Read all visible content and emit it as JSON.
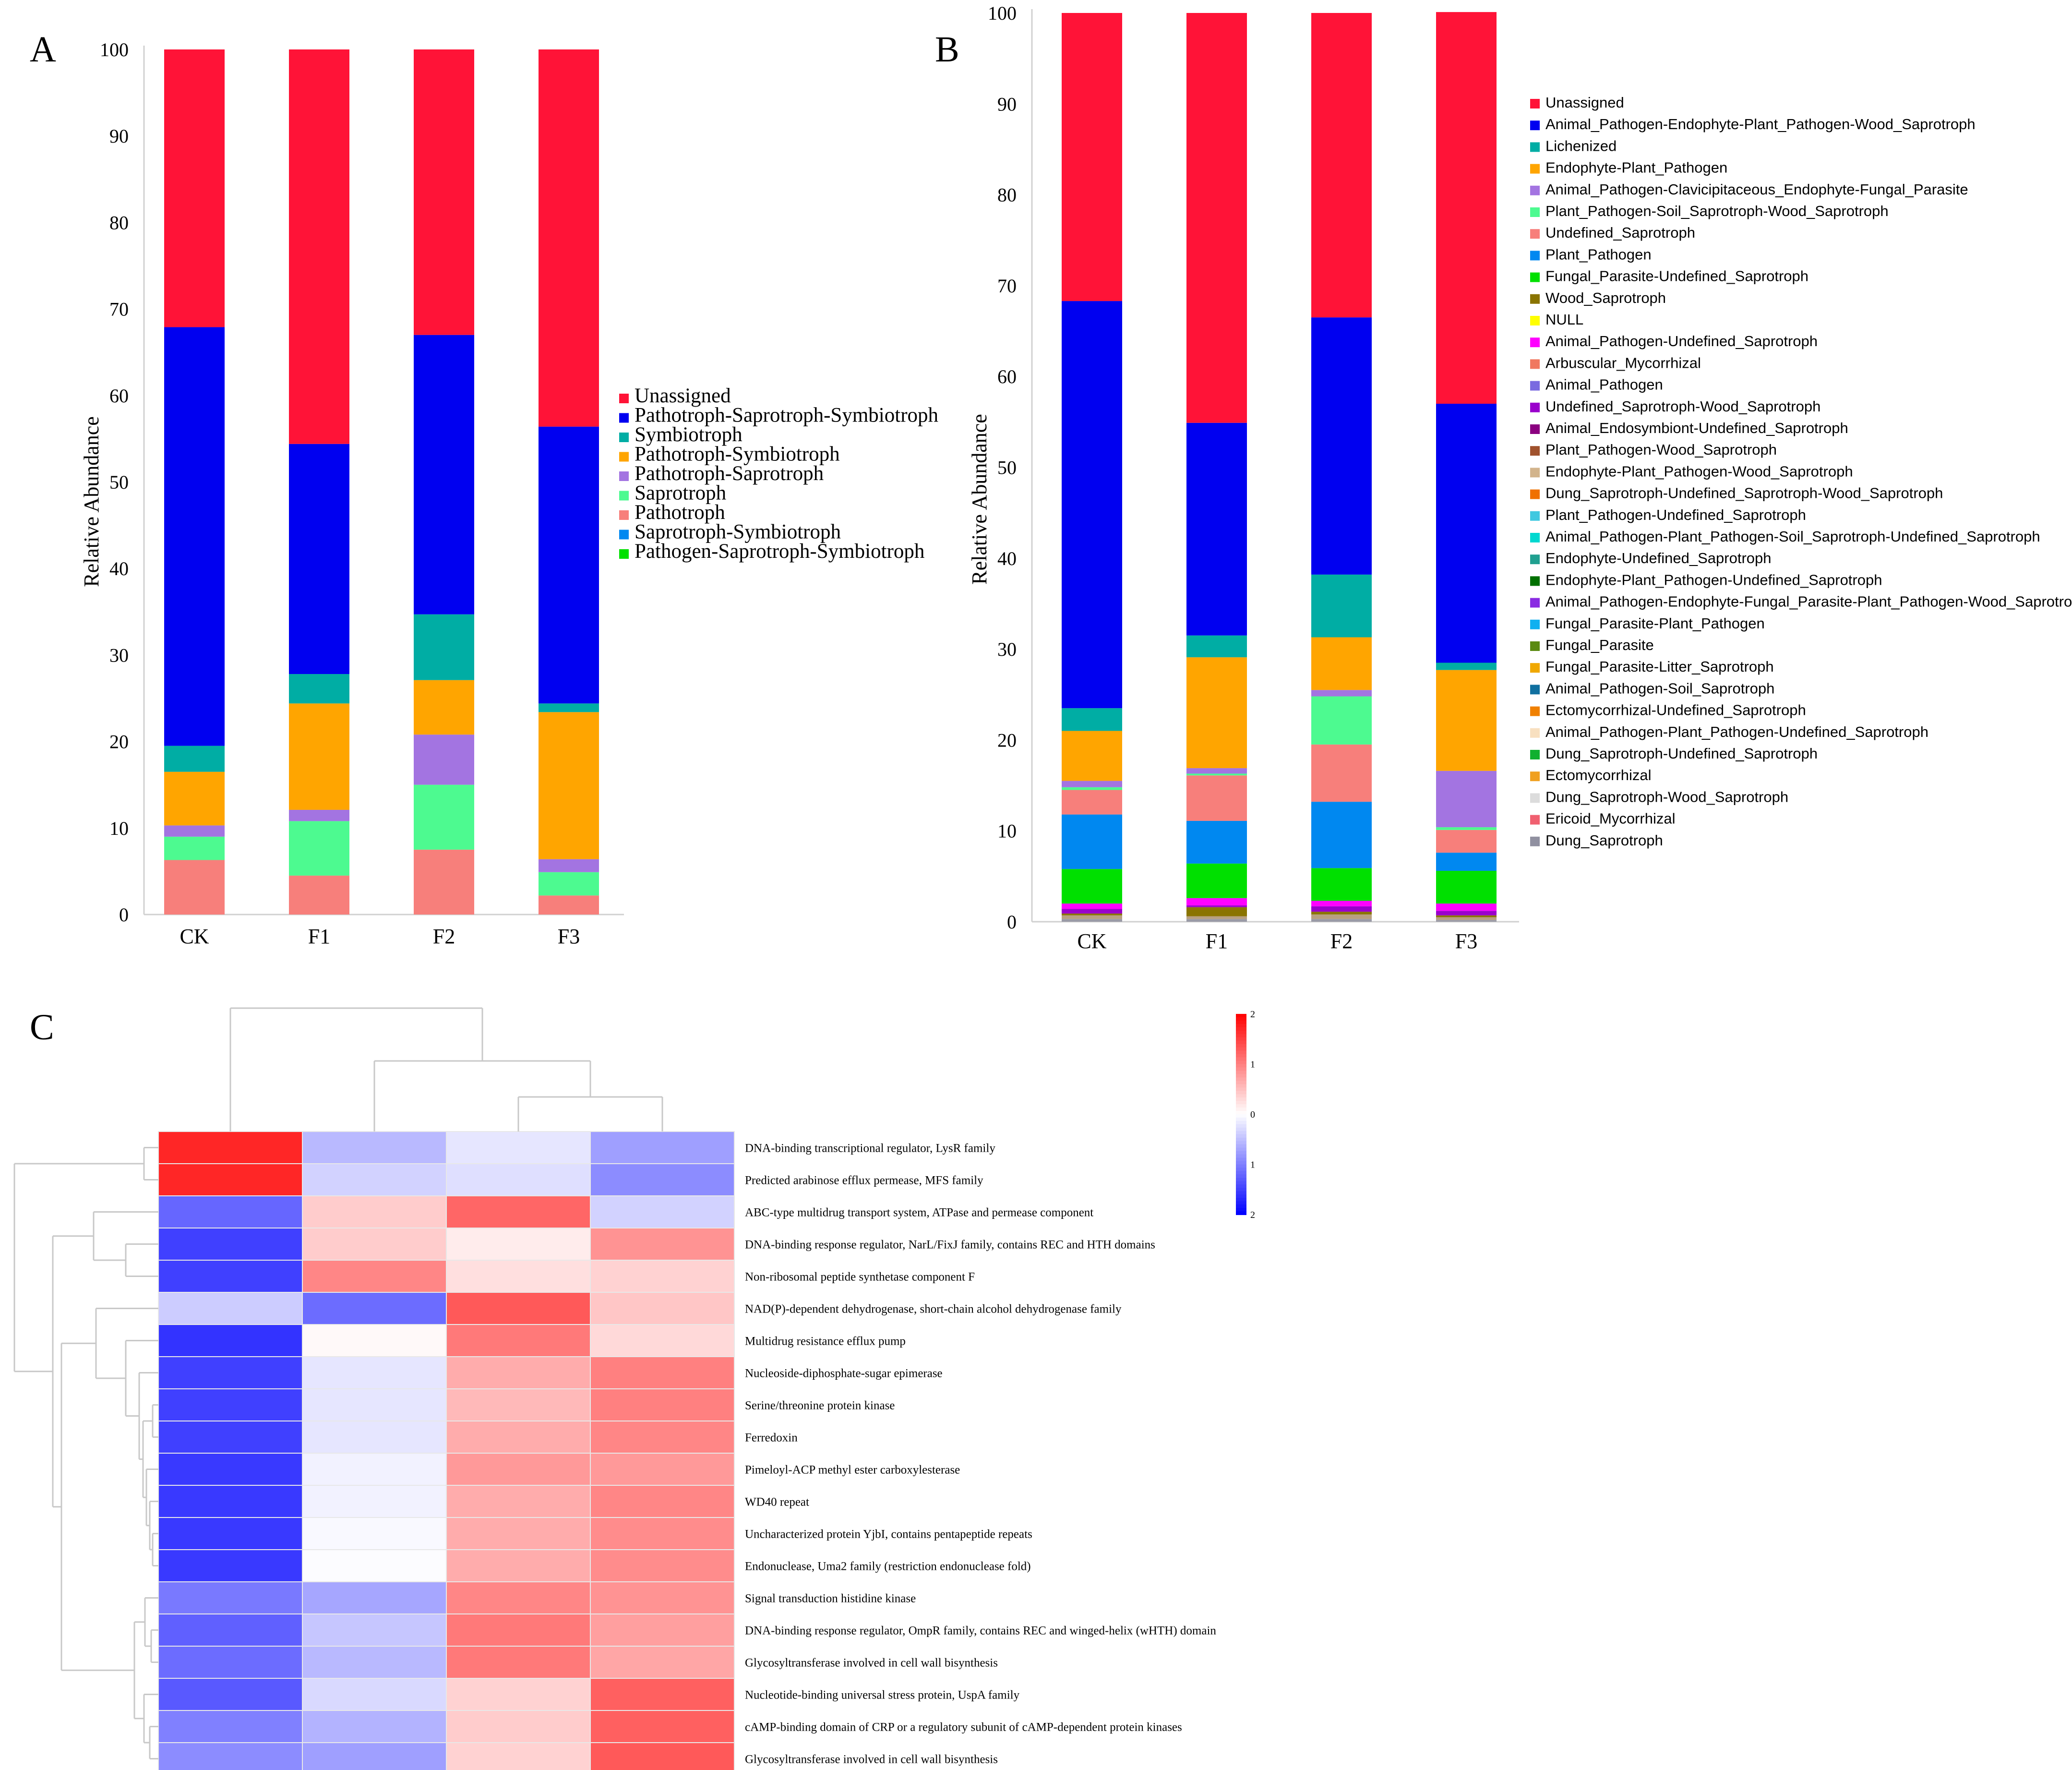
{
  "panel_labels": {
    "a": "A",
    "b": "B",
    "c": "C"
  },
  "chart_data": [
    {
      "type": "bar",
      "stacked": true,
      "panel": "A",
      "ylabel": "Relative Abundance",
      "ylim": [
        0,
        100
      ],
      "yticks": [
        "0",
        "10",
        "20",
        "30",
        "40",
        "50",
        "60",
        "70",
        "80",
        "90",
        "100"
      ],
      "categories": [
        "CK",
        "F1",
        "F2",
        "F3"
      ],
      "legend_placement": "right",
      "series": [
        {
          "name": "Pathotroph",
          "color": "#f77f7b",
          "values": [
            6.3,
            4.5,
            7.5,
            2.2
          ]
        },
        {
          "name": "Saprotroph",
          "color": "#4dfa90",
          "values": [
            2.7,
            6.3,
            7.5,
            2.7
          ]
        },
        {
          "name": "Pathotroph-Saprotroph",
          "color": "#a374e1",
          "values": [
            1.3,
            1.3,
            5.8,
            1.5
          ]
        },
        {
          "name": "Pathotroph-Symbiotroph",
          "color": "#ffa500",
          "values": [
            6.2,
            12.3,
            6.3,
            17.0
          ]
        },
        {
          "name": "Symbiotroph",
          "color": "#00ada4",
          "values": [
            3.0,
            3.4,
            7.6,
            1.0
          ]
        },
        {
          "name": "Pathotroph-Saprotroph-Symbiotroph",
          "color": "#0000f0",
          "values": [
            48.4,
            26.6,
            32.3,
            32.0
          ]
        },
        {
          "name": "Unassigned",
          "color": "#ff1337",
          "values": [
            32.1,
            45.6,
            33.0,
            43.6
          ]
        }
      ],
      "legend": [
        "Unassigned",
        "Pathotroph-Saprotroph-Symbiotroph",
        "Symbiotroph",
        "Pathotroph-Symbiotroph",
        "Pathotroph-Saprotroph",
        "Saprotroph",
        "Pathotroph",
        "Saprotroph-Symbiotroph",
        "Pathogen-Saprotroph-Symbiotroph"
      ],
      "legend_colors": [
        "#ff1337",
        "#0000f0",
        "#00ada4",
        "#ffa500",
        "#a374e1",
        "#4dfa90",
        "#f77f7b",
        "#0088f0",
        "#00e000"
      ]
    },
    {
      "type": "bar",
      "stacked": true,
      "panel": "B",
      "ylabel": "Relative Abundance",
      "ylim": [
        0,
        100
      ],
      "yticks": [
        "0",
        "10",
        "20",
        "30",
        "40",
        "50",
        "60",
        "70",
        "80",
        "90",
        "100"
      ],
      "categories": [
        "CK",
        "F1",
        "F2",
        "F3"
      ],
      "legend_placement": "right",
      "series": [
        {
          "name": "Dung_Saprotroph_etc",
          "color": "#9a9aa6",
          "values": [
            0.3,
            0.3,
            0.3,
            0.2
          ]
        },
        {
          "name": "Animal_Pathogen_etc",
          "color": "#b8a080",
          "values": [
            0.4,
            0.3,
            0.5,
            0.3
          ]
        },
        {
          "name": "Wood_Saprotroph",
          "color": "#8a7400",
          "values": [
            0.2,
            1.0,
            0.3,
            0.2
          ]
        },
        {
          "name": "Undefined_Saprotroph-Wood_Saprotroph",
          "color": "#9a00cc",
          "values": [
            0.5,
            0.2,
            0.6,
            0.5
          ]
        },
        {
          "name": "Animal_Pathogen-Undefined_Saprotroph",
          "color": "#ff00ff",
          "values": [
            0.6,
            0.8,
            0.6,
            0.8
          ]
        },
        {
          "name": "Fungal_Parasite-Undefined_Saprotroph",
          "color": "#00e000",
          "values": [
            3.8,
            3.8,
            3.6,
            3.6
          ]
        },
        {
          "name": "Plant_Pathogen",
          "color": "#0088f0",
          "values": [
            6.0,
            4.7,
            7.3,
            2.0
          ]
        },
        {
          "name": "Undefined_Saprotroph",
          "color": "#f77f7b",
          "values": [
            2.7,
            5.0,
            6.3,
            2.5
          ]
        },
        {
          "name": "Plant_Pathogen-Soil_Saprotroph-Wood_Saprotroph",
          "color": "#4dfa90",
          "values": [
            0.3,
            0.2,
            5.3,
            0.3
          ]
        },
        {
          "name": "Animal_Pathogen-Clavicipitaceous_Endophyte-Fungal_Parasite",
          "color": "#a374e1",
          "values": [
            0.7,
            0.6,
            0.7,
            6.2
          ]
        },
        {
          "name": "Endophyte-Plant_Pathogen",
          "color": "#ffa500",
          "values": [
            5.5,
            12.2,
            5.8,
            11.1
          ]
        },
        {
          "name": "Lichenized",
          "color": "#00ada4",
          "values": [
            2.5,
            2.4,
            6.9,
            0.8
          ]
        },
        {
          "name": "Animal_Pathogen-Endophyte-Plant_Pathogen-Wood_Saprotroph",
          "color": "#0000f0",
          "values": [
            44.8,
            23.4,
            28.3,
            28.5
          ]
        },
        {
          "name": "Unassigned",
          "color": "#ff1337",
          "values": [
            31.7,
            45.1,
            33.5,
            43.1
          ]
        }
      ],
      "legend": [
        "Unassigned",
        "Animal_Pathogen-Endophyte-Plant_Pathogen-Wood_Saprotroph",
        "Lichenized",
        "Endophyte-Plant_Pathogen",
        "Animal_Pathogen-Clavicipitaceous_Endophyte-Fungal_Parasite",
        "Plant_Pathogen-Soil_Saprotroph-Wood_Saprotroph",
        "Undefined_Saprotroph",
        "Plant_Pathogen",
        "Fungal_Parasite-Undefined_Saprotroph",
        "Wood_Saprotroph",
        "NULL",
        "Animal_Pathogen-Undefined_Saprotroph",
        "Arbuscular_Mycorrhizal",
        "Animal_Pathogen",
        "Undefined_Saprotroph-Wood_Saprotroph",
        "Animal_Endosymbiont-Undefined_Saprotroph",
        "Plant_Pathogen-Wood_Saprotroph",
        "Endophyte-Plant_Pathogen-Wood_Saprotroph",
        "Dung_Saprotroph-Undefined_Saprotroph-Wood_Saprotroph",
        "Plant_Pathogen-Undefined_Saprotroph",
        "Animal_Pathogen-Plant_Pathogen-Soil_Saprotroph-Undefined_Saprotroph",
        "Endophyte-Undefined_Saprotroph",
        "Endophyte-Plant_Pathogen-Undefined_Saprotroph",
        "Animal_Pathogen-Endophyte-Fungal_Parasite-Plant_Pathogen-Wood_Saprotroph",
        "Fungal_Parasite-Plant_Pathogen",
        "Fungal_Parasite",
        "Fungal_Parasite-Litter_Saprotroph",
        "Animal_Pathogen-Soil_Saprotroph",
        "Ectomycorrhizal-Undefined_Saprotroph",
        "Animal_Pathogen-Plant_Pathogen-Undefined_Saprotroph",
        "Dung_Saprotroph-Undefined_Saprotroph",
        "Ectomycorrhizal",
        "Dung_Saprotroph-Wood_Saprotroph",
        "Ericoid_Mycorrhizal",
        "Dung_Saprotroph"
      ],
      "legend_colors": [
        "#ff1337",
        "#0000f0",
        "#00ada4",
        "#ffa500",
        "#a374e1",
        "#4dfa90",
        "#f77f7b",
        "#0088f0",
        "#00e000",
        "#8a7400",
        "#ffff00",
        "#ff00ff",
        "#f07860",
        "#7a6ae0",
        "#9a00cc",
        "#8b0080",
        "#a0522d",
        "#d2b48c",
        "#f07000",
        "#40c8e0",
        "#00d8d0",
        "#20a090",
        "#007000",
        "#8a2be2",
        "#10b0f0",
        "#5a8a10",
        "#f0a800",
        "#1070a0",
        "#f08000",
        "#f8e0c0",
        "#10b030",
        "#f0a020",
        "#dcdcdc",
        "#f06070",
        "#9090a0"
      ]
    },
    {
      "type": "heatmap",
      "panel": "C",
      "columns": 4,
      "scale": {
        "min": -2,
        "max": 2,
        "ticks": [
          "2",
          "1",
          "0",
          "1",
          "2"
        ]
      },
      "rows": [
        "DNA-binding transcriptional regulator, LysR family",
        "Predicted arabinose efflux permease, MFS family",
        "ABC-type multidrug transport system, ATPase and permease component",
        "DNA-binding response regulator, NarL/FixJ family, contains REC and HTH domains",
        "Non-ribosomal peptide synthetase component F",
        "NAD(P)-dependent dehydrogenase, short-chain alcohol dehydrogenase family",
        "Multidrug resistance efflux pump",
        "Nucleoside-diphosphate-sugar epimerase",
        "Serine/threonine protein kinase",
        "Ferredoxin",
        "Pimeloyl-ACP methyl ester carboxylesterase",
        "WD40 repeat",
        "Uncharacterized protein YjbI, contains pentapeptide repeats",
        "Endonuclease, Uma2 family (restriction endonuclease fold)",
        "Signal transduction histidine kinase",
        "DNA-binding response regulator, OmpR family, contains REC and winged-helix (wHTH) domain",
        "Glycosyltransferase involved in cell wall bisynthesis",
        "Nucleotide-binding universal stress protein, UspA family",
        "cAMP-binding domain of CRP or a regulatory subunit of cAMP-dependent protein kinases",
        "Glycosyltransferase involved in cell wall bisynthesis"
      ],
      "values": [
        [
          1.7,
          -0.55,
          -0.2,
          -0.75
        ],
        [
          1.7,
          -0.35,
          -0.25,
          -0.9
        ],
        [
          -1.2,
          0.4,
          1.2,
          -0.35
        ],
        [
          -1.5,
          0.4,
          0.15,
          0.85
        ],
        [
          -1.5,
          0.95,
          0.25,
          0.35
        ],
        [
          -0.4,
          -1.15,
          1.3,
          0.45
        ],
        [
          -1.6,
          0.05,
          1.05,
          0.3
        ],
        [
          -1.5,
          -0.2,
          0.65,
          1.0
        ],
        [
          -1.5,
          -0.2,
          0.55,
          1.0
        ],
        [
          -1.5,
          -0.2,
          0.65,
          0.95
        ],
        [
          -1.55,
          -0.1,
          0.8,
          0.8
        ],
        [
          -1.55,
          -0.1,
          0.65,
          0.95
        ],
        [
          -1.55,
          -0.05,
          0.65,
          0.9
        ],
        [
          -1.55,
          -0.02,
          0.65,
          0.9
        ],
        [
          -1.05,
          -0.7,
          0.95,
          0.85
        ],
        [
          -1.25,
          -0.45,
          1.05,
          0.75
        ],
        [
          -1.15,
          -0.55,
          1.05,
          0.7
        ],
        [
          -1.3,
          -0.3,
          0.35,
          1.25
        ],
        [
          -1.0,
          -0.6,
          0.4,
          1.25
        ],
        [
          -0.9,
          -0.75,
          0.35,
          1.3
        ]
      ]
    }
  ]
}
